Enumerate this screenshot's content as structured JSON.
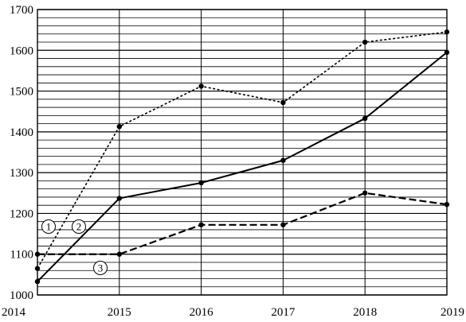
{
  "chart_data": {
    "type": "line",
    "title": "",
    "xlabel": "",
    "ylabel": "",
    "x": [
      "2014",
      "2015",
      "2016",
      "2017",
      "2018",
      "2019"
    ],
    "xlim": [
      "2014",
      "2019"
    ],
    "ylim": [
      1000,
      1700
    ],
    "y_minor_step": 20,
    "y_tick_labels": [
      "1000",
      "1100",
      "1200",
      "1300",
      "1400",
      "1500",
      "1600",
      "1700"
    ],
    "grid": true,
    "series": [
      {
        "marker": "1",
        "style": "dotted",
        "values": [
          1065,
          1413,
          1512,
          1472,
          1620,
          1645
        ]
      },
      {
        "marker": "2",
        "style": "solid",
        "values": [
          1033,
          1237,
          1275,
          1330,
          1433,
          1595
        ]
      },
      {
        "marker": "3",
        "style": "dashed",
        "values": [
          1100,
          1100,
          1172,
          1172,
          1250,
          1222
        ]
      }
    ],
    "annotations": [
      "1",
      "2",
      "3"
    ]
  }
}
